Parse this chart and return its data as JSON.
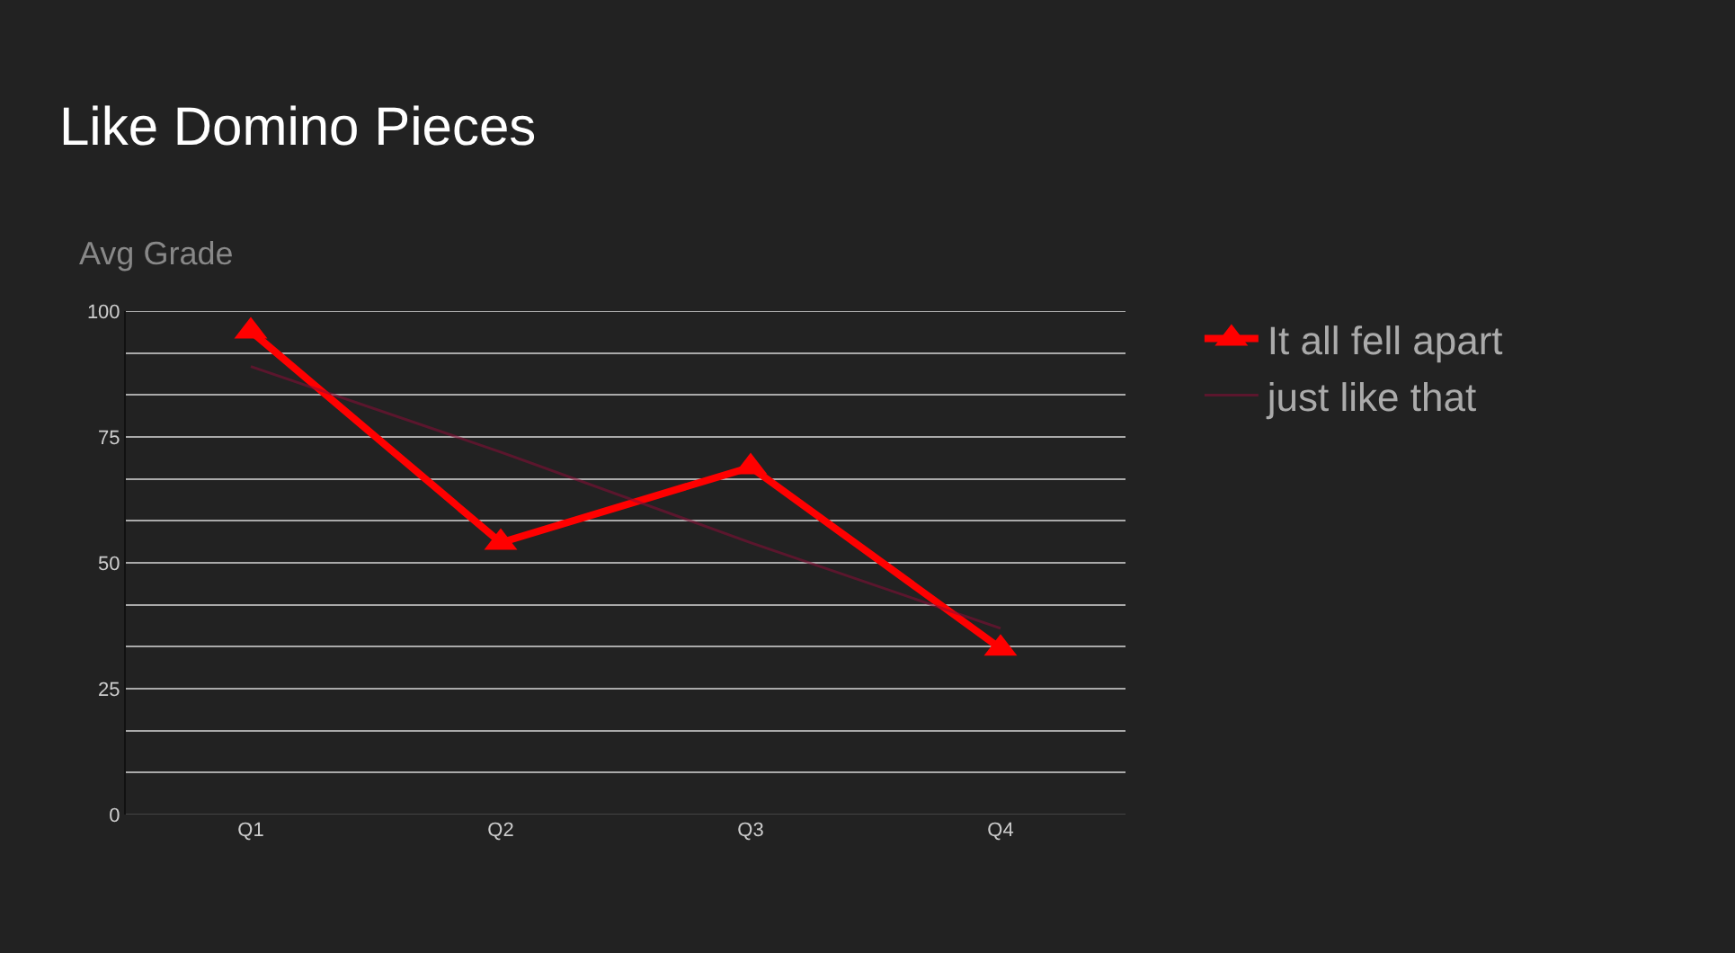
{
  "chart_data": {
    "type": "line",
    "title": "Like Domino Pieces",
    "ylabel": "Avg Grade",
    "categories": [
      "Q1",
      "Q2",
      "Q3",
      "Q4"
    ],
    "ylim": [
      0,
      100
    ],
    "yticks": [
      0,
      {
        "value": 8.33,
        "label": null
      },
      {
        "value": 16.67,
        "label": null
      },
      25,
      {
        "value": 33.33,
        "label": null
      },
      {
        "value": 41.67,
        "label": null
      },
      50,
      {
        "value": 58.33,
        "label": null
      },
      {
        "value": 66.67,
        "label": null
      },
      75,
      {
        "value": 83.33,
        "label": null
      },
      {
        "value": 91.67,
        "label": null
      },
      100
    ],
    "series": [
      {
        "name": "It all fell apart",
        "color": "#ff0000",
        "values": [
          96,
          54,
          69,
          33
        ],
        "marker": "triangle"
      },
      {
        "name": "just like that",
        "color": "#8b0d37",
        "type": "line",
        "values": [
          89,
          72,
          54,
          37
        ],
        "marker": "none"
      }
    ],
    "grid": "y",
    "legend": "top right"
  }
}
